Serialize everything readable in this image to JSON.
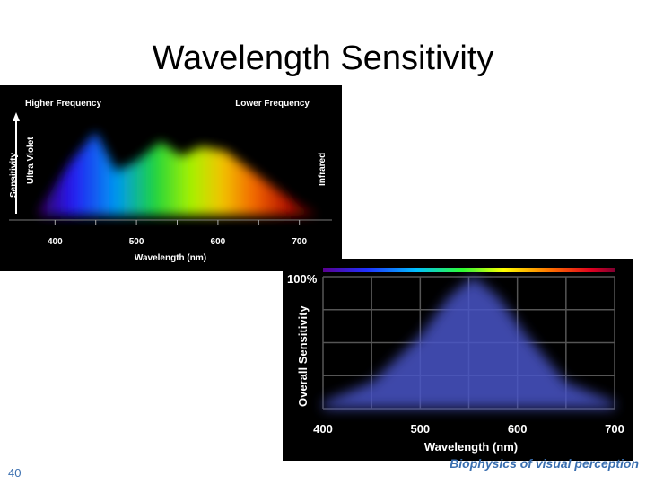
{
  "slide": {
    "title": "Wavelength Sensitivity",
    "page_number": "40",
    "footer": "Biophysics of visual perception"
  },
  "figure1": {
    "top_left_label": "Higher Frequency",
    "top_right_label": "Lower Frequency",
    "y_label": "Sensitivity",
    "left_band_label": "Ultra Violet",
    "right_band_label": "Infrared",
    "x_label": "Wavelength (nm)"
  },
  "figure2": {
    "y_top_label": "100%",
    "y_label": "Overall Sensitivity",
    "x_label": "Wavelength (nm)"
  },
  "chart_data": [
    {
      "type": "area",
      "title": "",
      "xlabel": "Wavelength (nm)",
      "ylabel": "Sensitivity",
      "x_ticks": [
        "400",
        "500",
        "600",
        "700"
      ],
      "xlim": [
        360,
        740
      ],
      "series": [
        {
          "x": [
            380,
            420,
            450,
            475,
            500,
            530,
            555,
            580,
            610,
            650,
            700,
            720
          ],
          "values": [
            0.05,
            0.55,
            0.85,
            0.45,
            0.55,
            0.75,
            0.6,
            0.7,
            0.65,
            0.4,
            0.1,
            0.03
          ]
        }
      ],
      "grid": false
    },
    {
      "type": "area",
      "title": "",
      "xlabel": "Wavelength (nm)",
      "ylabel": "Overall Sensitivity",
      "x_ticks": [
        "400",
        "500",
        "600",
        "700"
      ],
      "xlim": [
        400,
        700
      ],
      "ylim": [
        0,
        100
      ],
      "series": [
        {
          "x": [
            400,
            450,
            500,
            530,
            555,
            580,
            610,
            650,
            700
          ],
          "values": [
            5,
            20,
            55,
            85,
            100,
            85,
            55,
            20,
            5
          ]
        }
      ],
      "grid": true
    }
  ]
}
